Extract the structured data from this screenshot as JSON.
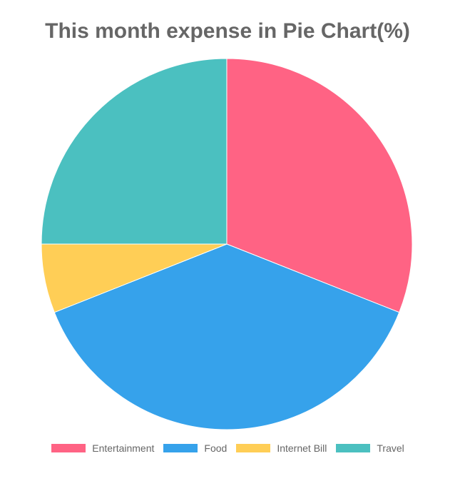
{
  "chart_data": {
    "type": "pie",
    "title": "This month expense in Pie Chart(%)",
    "categories": [
      "Entertainment",
      "Food",
      "Internet Bill",
      "Travel"
    ],
    "values": [
      31,
      38,
      6,
      25
    ],
    "colors": [
      "#FF6384",
      "#36A2EB",
      "#FFCE56",
      "#4BC0C0"
    ],
    "legend_position": "bottom"
  }
}
